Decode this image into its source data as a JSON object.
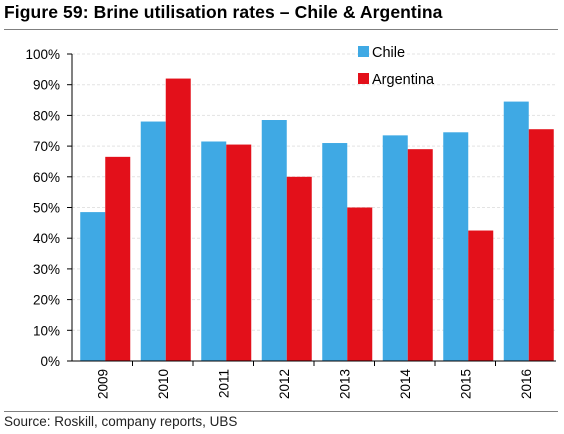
{
  "figure": {
    "title": "Figure 59: Brine utilisation rates – Chile & Argentina",
    "source": "Source: Roskill, company reports, UBS"
  },
  "chart_data": {
    "type": "bar",
    "categories": [
      "2009",
      "2010",
      "2011",
      "2012",
      "2013",
      "2014",
      "2015",
      "2016"
    ],
    "series": [
      {
        "name": "Chile",
        "color": "#3fa9e4",
        "values": [
          48.5,
          78,
          71.5,
          78.5,
          71,
          73.5,
          74.5,
          84.5
        ]
      },
      {
        "name": "Argentina",
        "color": "#e3101a",
        "values": [
          66.5,
          92,
          70.5,
          60,
          50,
          69,
          42.5,
          75.5
        ]
      }
    ],
    "ylim": [
      0,
      100
    ],
    "yticks": [
      "0%",
      "10%",
      "20%",
      "30%",
      "40%",
      "50%",
      "60%",
      "70%",
      "80%",
      "90%",
      "100%"
    ],
    "grid": true,
    "legend": "top-right",
    "xlabel": "",
    "ylabel": ""
  }
}
